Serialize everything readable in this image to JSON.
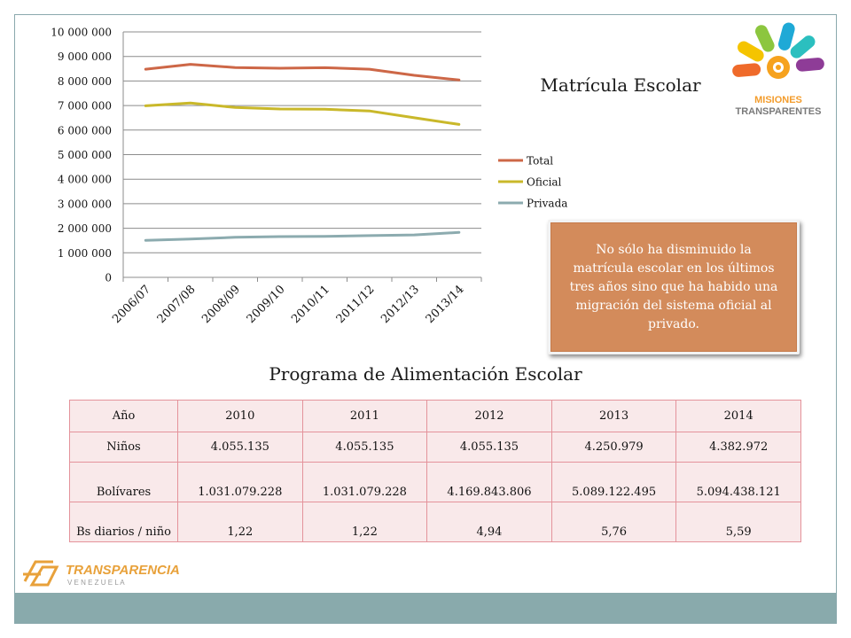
{
  "slide": {
    "title": "Matrícula Escolar",
    "callout": "No sólo ha disminuido la matrícula escolar en los últimos tres años sino que  ha habido una migración del sistema oficial al privado.",
    "table_title": "Programa de Alimentación Escolar"
  },
  "logos": {
    "misiones_line1": "MISIONES",
    "misiones_line2": "TRANSPARENTES",
    "transparencia_line1": "TRANSPARENCIA",
    "transparencia_line2": "V E N E Z U E L A"
  },
  "colors": {
    "total": "#cd6747",
    "oficial": "#c9b82a",
    "privada": "#8cabaf",
    "grid": "#8c8c8c",
    "frame": "#8aa9ad"
  },
  "chart_data": {
    "type": "line",
    "categories": [
      "2006/07",
      "2007/08",
      "2008/09",
      "2009/10",
      "2010/11",
      "2011/12",
      "2012/13",
      "2013/14"
    ],
    "series": [
      {
        "name": "Total",
        "values": [
          8480000,
          8680000,
          8550000,
          8520000,
          8540000,
          8480000,
          8230000,
          8040000
        ]
      },
      {
        "name": "Oficial",
        "values": [
          6990000,
          7100000,
          6920000,
          6860000,
          6850000,
          6780000,
          6500000,
          6230000
        ]
      },
      {
        "name": "Privada",
        "values": [
          1510000,
          1560000,
          1630000,
          1660000,
          1670000,
          1700000,
          1730000,
          1830000
        ]
      }
    ],
    "yticks": [
      "0",
      "1 000 000",
      "2 000 000",
      "3 000 000",
      "4 000 000",
      "5 000 000",
      "6 000 000",
      "7 000 000",
      "8 000 000",
      "9 000 000",
      "10 000 000"
    ],
    "ylim": [
      0,
      10000000
    ],
    "grid": true,
    "legend": "right"
  },
  "table": {
    "header": [
      "Año",
      "2010",
      "2011",
      "2012",
      "2013",
      "2014"
    ],
    "rows": [
      [
        "Niños",
        "4.055.135",
        "4.055.135",
        "4.055.135",
        "4.250.979",
        "4.382.972"
      ],
      [
        "Bolívares",
        "1.031.079.228",
        "1.031.079.228",
        "4.169.843.806",
        "5.089.122.495",
        "5.094.438.121"
      ],
      [
        "Bs diarios / niño",
        "1,22",
        "1,22",
        "4,94",
        "5,76",
        "5,59"
      ]
    ]
  }
}
